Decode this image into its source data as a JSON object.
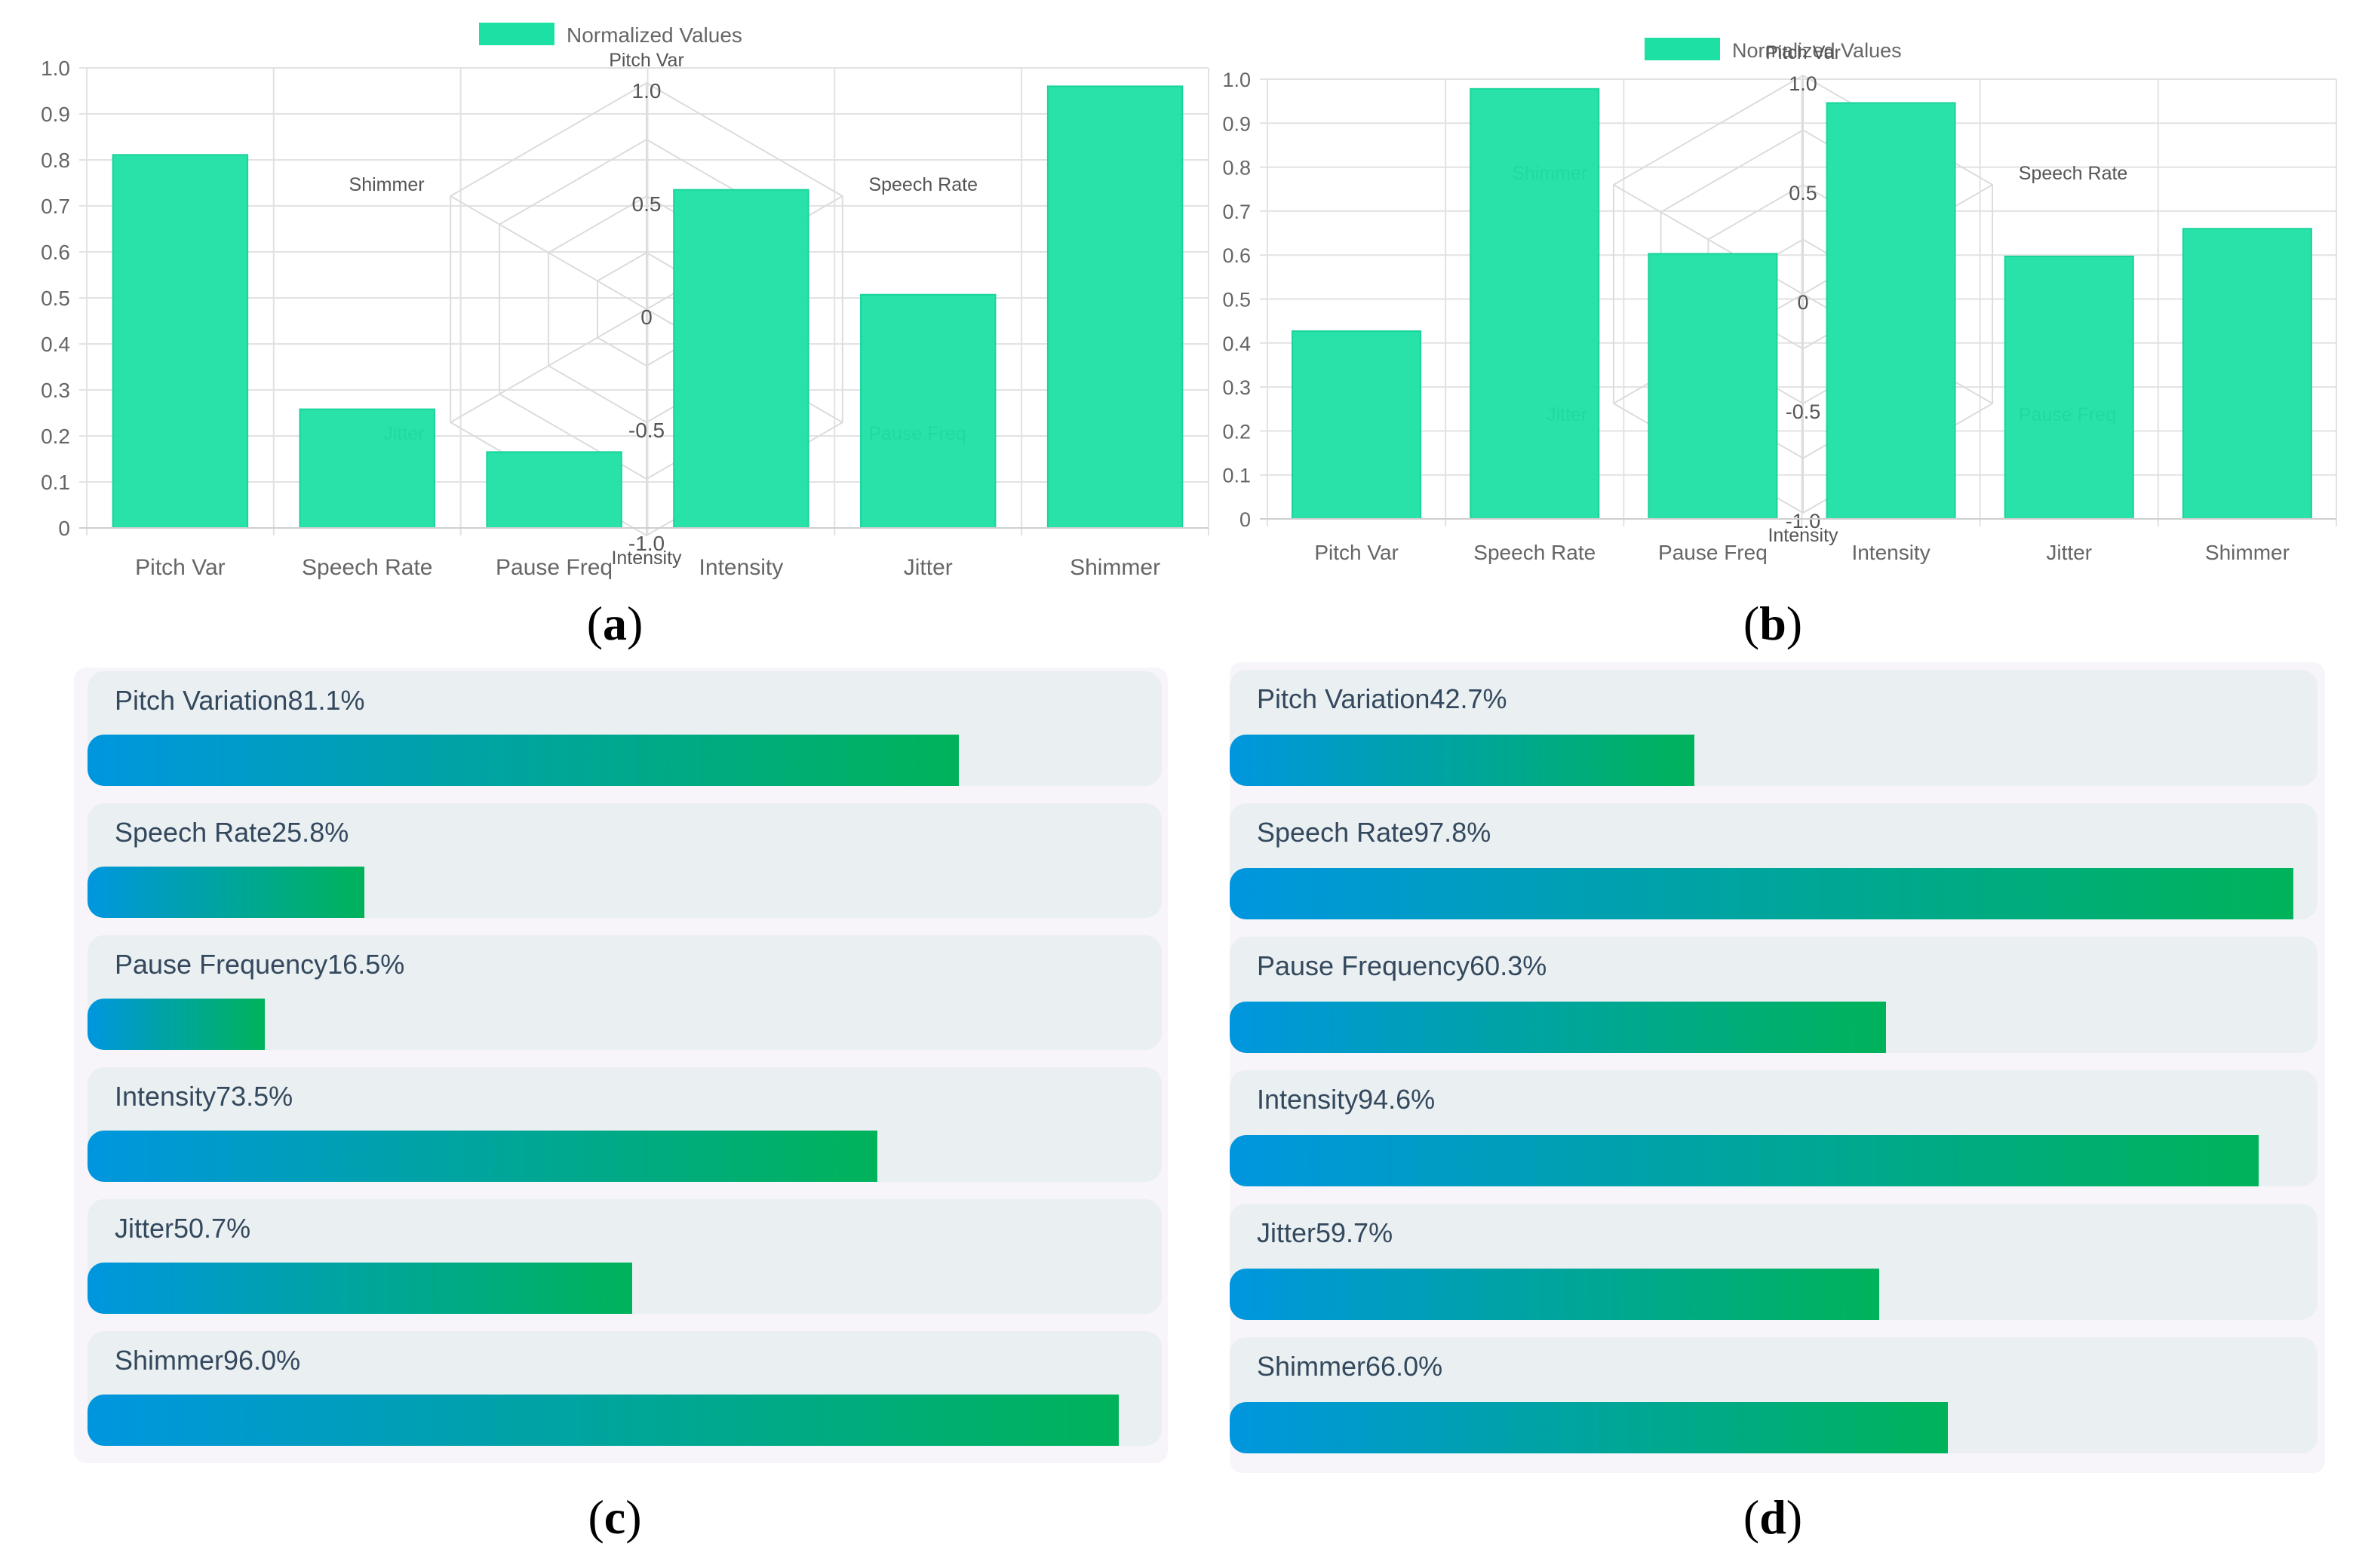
{
  "charts": {
    "a": {
      "caption": "a",
      "chart_data": {
        "type": "bar",
        "legend": "Normalized Values",
        "categories": [
          "Pitch Var",
          "Speech Rate",
          "Pause Freq",
          "Intensity",
          "Jitter",
          "Shimmer"
        ],
        "values": [
          0.811,
          0.258,
          0.165,
          0.735,
          0.507,
          0.96
        ],
        "ylim": [
          0,
          1
        ],
        "yticks": [
          "0",
          "0.1",
          "0.2",
          "0.3",
          "0.4",
          "0.5",
          "0.6",
          "0.7",
          "0.8",
          "0.9",
          "1.0"
        ],
        "color": "#1de0a5",
        "radar_overlay": {
          "axes": [
            "Pitch Var",
            "Speech Rate",
            "Pause Freq",
            "Intensity",
            "Jitter",
            "Shimmer"
          ],
          "rticks": [
            "1.0",
            "0.5",
            "0",
            "-0.5",
            "-1.0"
          ]
        }
      }
    },
    "b": {
      "caption": "b",
      "chart_data": {
        "type": "bar",
        "legend": "Normalized Values",
        "categories": [
          "Pitch Var",
          "Speech Rate",
          "Pause Freq",
          "Intensity",
          "Jitter",
          "Shimmer"
        ],
        "values": [
          0.427,
          0.978,
          0.603,
          0.946,
          0.597,
          0.66
        ],
        "ylim": [
          0,
          1
        ],
        "yticks": [
          "0",
          "0.1",
          "0.2",
          "0.3",
          "0.4",
          "0.5",
          "0.6",
          "0.7",
          "0.8",
          "0.9",
          "1.0"
        ],
        "color": "#1de0a5",
        "radar_overlay": {
          "axes": [
            "Pitch Var",
            "Speech Rate",
            "Pause Freq",
            "Intensity",
            "Jitter",
            "Shimmer"
          ],
          "rticks": [
            "1.0",
            "0.5",
            "0",
            "-0.5",
            "-1.0"
          ]
        }
      }
    }
  },
  "progress": {
    "c": {
      "caption": "c",
      "items": [
        {
          "label": "Pitch Variation81.1%",
          "value": 81.1
        },
        {
          "label": "Speech Rate25.8%",
          "value": 25.8
        },
        {
          "label": "Pause Frequency16.5%",
          "value": 16.5
        },
        {
          "label": "Intensity73.5%",
          "value": 73.5
        },
        {
          "label": "Jitter50.7%",
          "value": 50.7
        },
        {
          "label": "Shimmer96.0%",
          "value": 96.0
        }
      ]
    },
    "d": {
      "caption": "d",
      "items": [
        {
          "label": "Pitch Variation42.7%",
          "value": 42.7
        },
        {
          "label": "Speech Rate97.8%",
          "value": 97.8
        },
        {
          "label": "Pause Frequency60.3%",
          "value": 60.3
        },
        {
          "label": "Intensity94.6%",
          "value": 94.6
        },
        {
          "label": "Jitter59.7%",
          "value": 59.7
        },
        {
          "label": "Shimmer66.0%",
          "value": 66.0
        }
      ]
    }
  },
  "colors": {
    "bar": "#1de0a5",
    "grid": "#e2e2e2",
    "axis_text": "#666666",
    "gradient_start": "#0096df",
    "gradient_end": "#00b35a",
    "card_bg": "#eaeff1",
    "panel_bg": "#f7f5fa"
  }
}
